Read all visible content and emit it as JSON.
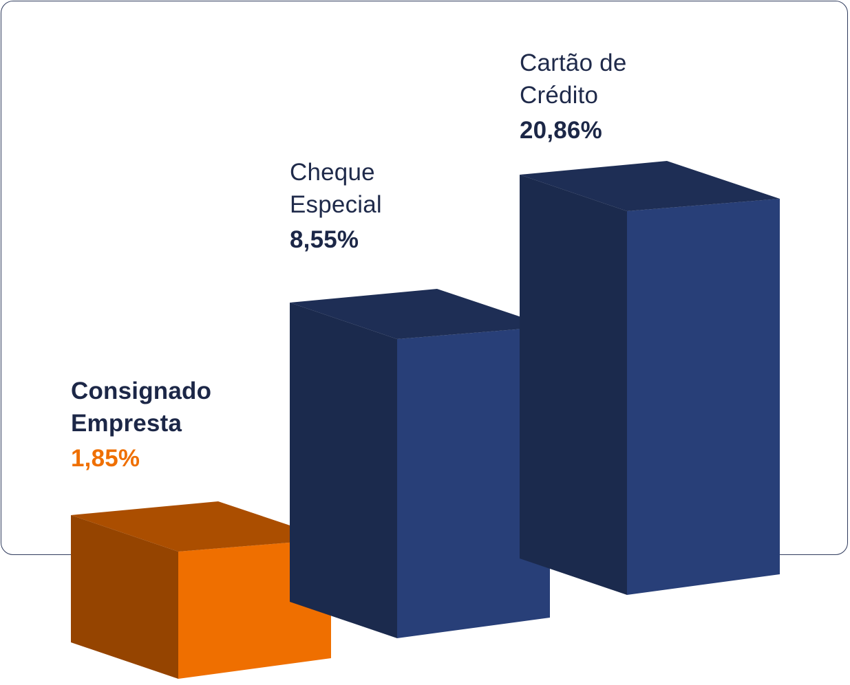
{
  "chart_data": {
    "type": "bar",
    "categories": [
      "Consignado Empresta",
      "Cheque Especial",
      "Cartão de Crédito"
    ],
    "category_lines": [
      [
        "Consignado",
        "Empresta"
      ],
      [
        "Cheque",
        "Especial"
      ],
      [
        "Cartão de",
        "Crédito"
      ]
    ],
    "values": [
      1.85,
      8.55,
      20.86
    ],
    "value_labels": [
      "1,85%",
      "8,55%",
      "20,86%"
    ],
    "colors": {
      "highlight_front": "#ef6f00",
      "highlight_side": "#954400",
      "highlight_top": "#ab4e00",
      "base_front": "#283f78",
      "base_side": "#1b2a4d",
      "base_top": "#1e2e55"
    },
    "highlight_index": 0,
    "style": "3d-columns",
    "grid": false,
    "legend": "none"
  }
}
